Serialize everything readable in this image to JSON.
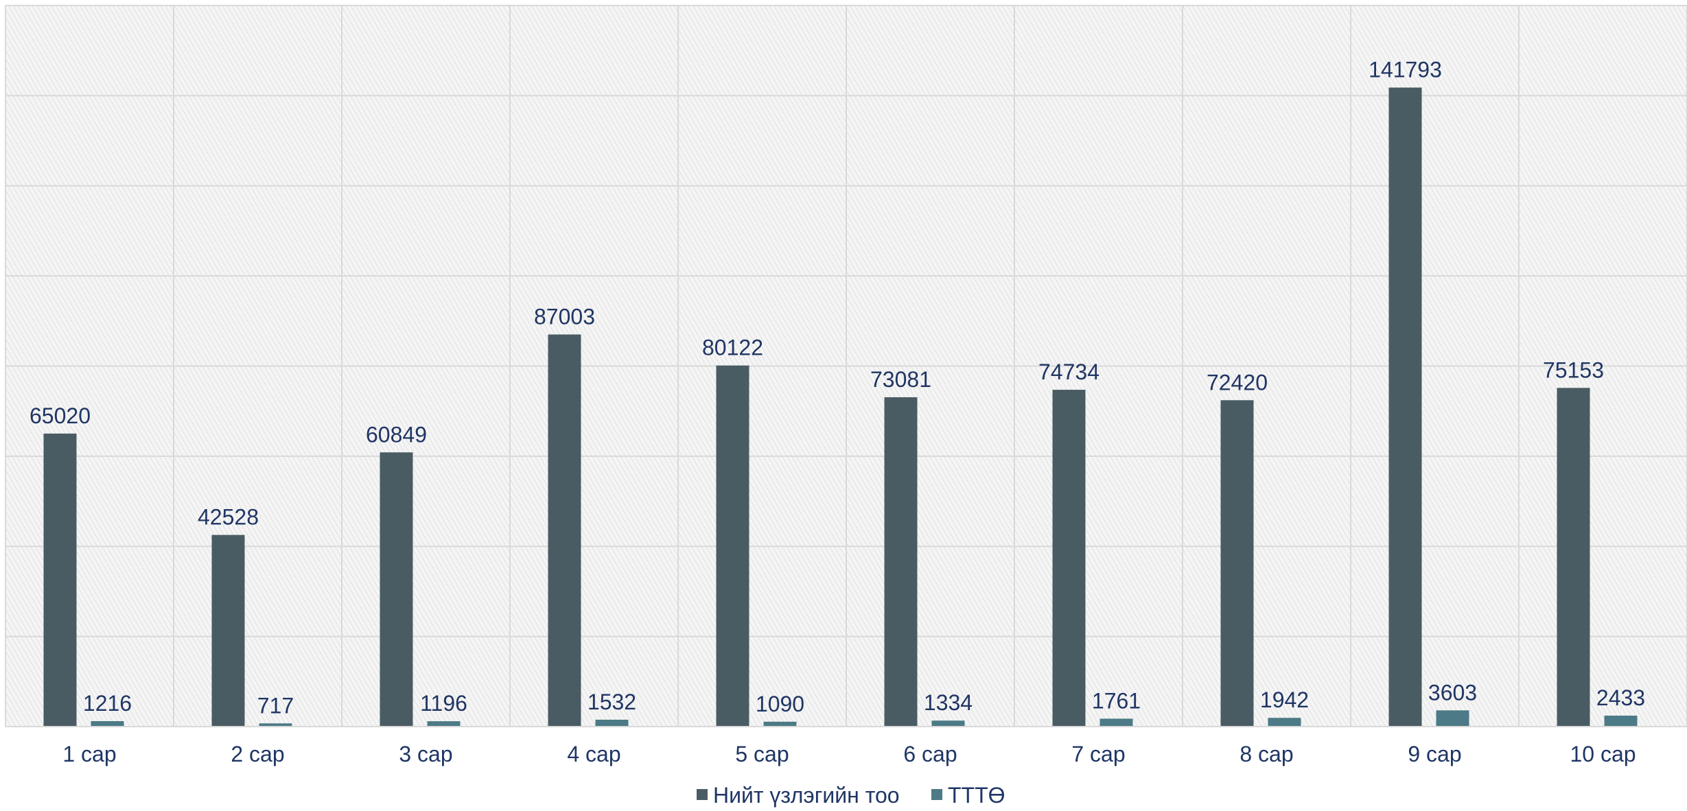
{
  "chart_data": {
    "type": "bar",
    "categories": [
      "1 сар",
      "2 сар",
      "3 сар",
      "4 сар",
      "5 сар",
      "6 сар",
      "7 сар",
      "8 сар",
      "9 сар",
      "10 сар"
    ],
    "series": [
      {
        "name": "Нийт үзлэгийн тоо",
        "color": "#4a5c63",
        "values": [
          65020,
          42528,
          60849,
          87003,
          80122,
          73081,
          74734,
          72420,
          141793,
          75153
        ]
      },
      {
        "name": "ТТТӨ",
        "color": "#4c7a86",
        "values": [
          1216,
          717,
          1196,
          1532,
          1090,
          1334,
          1761,
          1942,
          3603,
          2433
        ]
      }
    ],
    "ylim": [
      0,
      160000
    ],
    "grid": true,
    "legend": "bottom",
    "label_color": "#1f3564"
  }
}
